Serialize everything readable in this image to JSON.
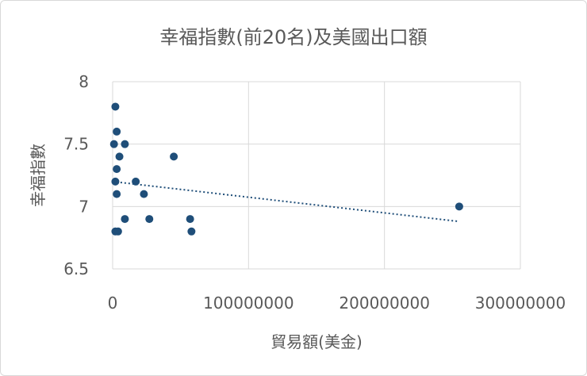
{
  "chart_data": {
    "type": "scatter",
    "title": "幸福指數(前20名)及美國出口額",
    "xlabel": "貿易額(美金)",
    "ylabel": "幸福指數",
    "xlim": [
      0,
      300000000
    ],
    "ylim": [
      6.5,
      8
    ],
    "x_ticks": [
      "0",
      "100000000",
      "200000000",
      "300000000"
    ],
    "y_ticks": [
      "6.5",
      "7",
      "7.5",
      "8"
    ],
    "grid": true,
    "trendline": {
      "type": "linear",
      "start": [
        0,
        7.2
      ],
      "end": [
        255000000,
        6.88
      ]
    },
    "points": [
      {
        "x": 1000000,
        "y": 7.5
      },
      {
        "x": 2000000,
        "y": 6.8
      },
      {
        "x": 2000000,
        "y": 7.2
      },
      {
        "x": 2000000,
        "y": 7.8
      },
      {
        "x": 3000000,
        "y": 7.3
      },
      {
        "x": 3000000,
        "y": 7.6
      },
      {
        "x": 3000000,
        "y": 7.1
      },
      {
        "x": 4000000,
        "y": 6.8
      },
      {
        "x": 5000000,
        "y": 7.4
      },
      {
        "x": 9000000,
        "y": 6.9
      },
      {
        "x": 9000000,
        "y": 7.5
      },
      {
        "x": 17000000,
        "y": 7.2
      },
      {
        "x": 23000000,
        "y": 7.1
      },
      {
        "x": 27000000,
        "y": 6.9
      },
      {
        "x": 45000000,
        "y": 7.4
      },
      {
        "x": 57000000,
        "y": 6.9
      },
      {
        "x": 58000000,
        "y": 6.8
      },
      {
        "x": 255000000,
        "y": 7.0
      }
    ]
  }
}
